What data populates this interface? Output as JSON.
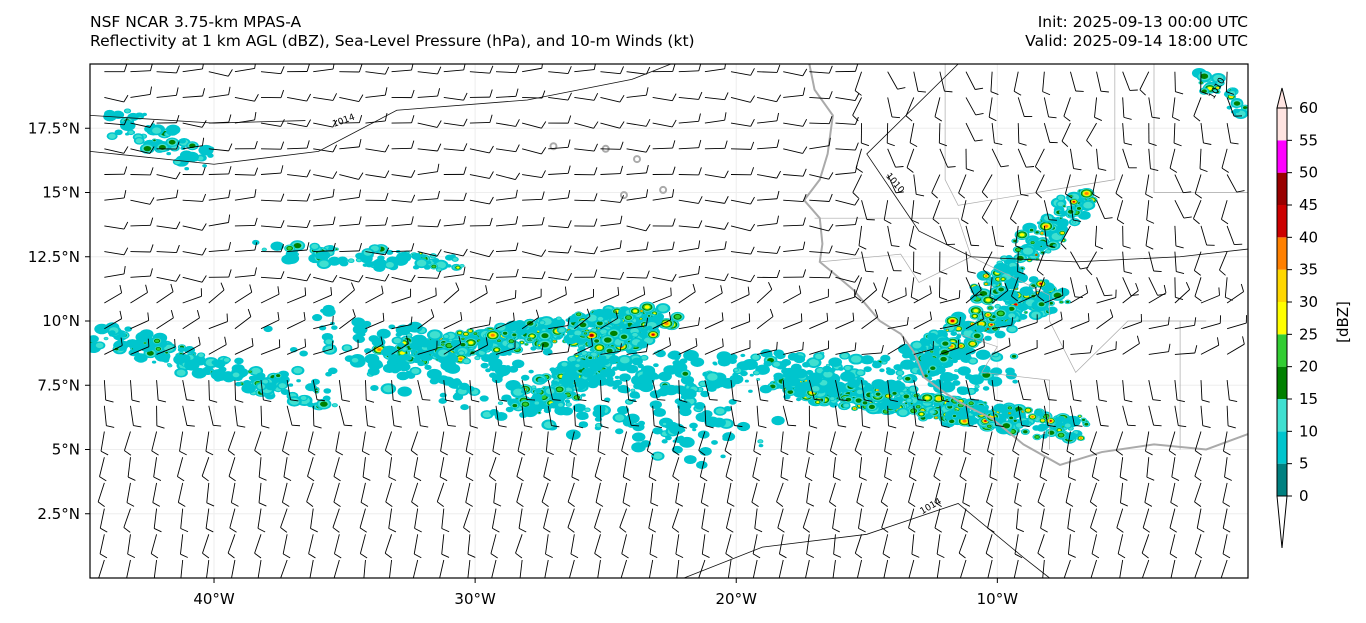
{
  "header": {
    "title_line1": "NSF NCAR 3.75-km MPAS-A",
    "title_line2": "Reflectivity at 1 km AGL (dBZ), Sea-Level Pressure (hPa), and 10-m Winds (kt)",
    "init": "Init: 2025-09-13 00:00 UTC",
    "valid": "Valid: 2025-09-14 18:00 UTC"
  },
  "map": {
    "lon_range": [
      -44.75,
      -0.4
    ],
    "lat_range": [
      0,
      20
    ],
    "lon_ticks": [
      {
        "value": -40,
        "label": "40°W"
      },
      {
        "value": -30,
        "label": "30°W"
      },
      {
        "value": -20,
        "label": "20°W"
      },
      {
        "value": -10,
        "label": "10°W"
      }
    ],
    "lat_ticks": [
      {
        "value": 17.5,
        "label": "17.5°N"
      },
      {
        "value": 15,
        "label": "15°N"
      },
      {
        "value": 12.5,
        "label": "12.5°N"
      },
      {
        "value": 10,
        "label": "10°N"
      },
      {
        "value": 7.5,
        "label": "7.5°N"
      },
      {
        "value": 5,
        "label": "5°N"
      },
      {
        "value": 2.5,
        "label": "2.5°N"
      }
    ],
    "contour_labels": [
      "1014",
      "1010",
      "1014",
      "1010"
    ]
  },
  "colorbar": {
    "label": "[dBZ]",
    "levels": [
      "0",
      "5",
      "10",
      "15",
      "20",
      "25",
      "30",
      "35",
      "40",
      "45",
      "50",
      "55",
      "60"
    ],
    "colors": [
      "#008080",
      "#00c5cd",
      "#40e0d0",
      "#008000",
      "#32cd32",
      "#ffff00",
      "#ffd700",
      "#ff8000",
      "#cc0000",
      "#990000",
      "#ff00ff",
      "#ffe4e1"
    ]
  }
}
